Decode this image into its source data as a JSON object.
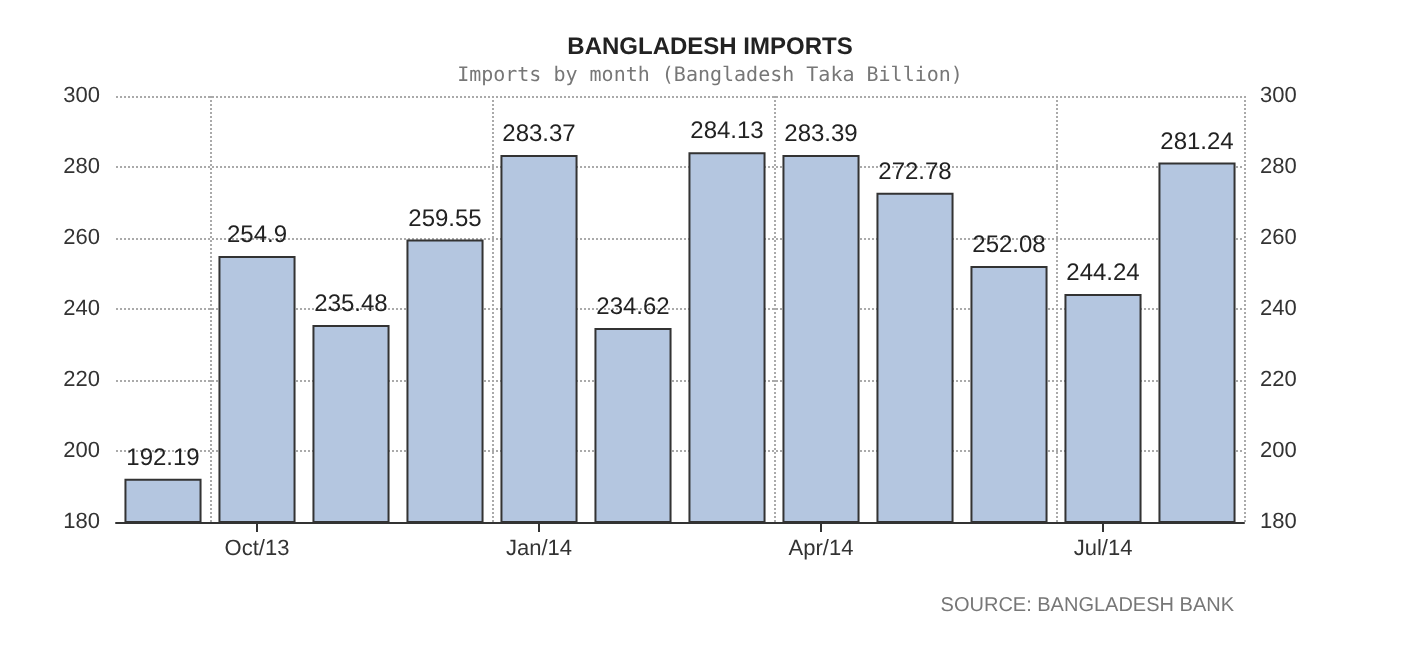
{
  "chart_data": {
    "type": "bar",
    "title": "BANGLADESH IMPORTS",
    "subtitle": "Imports by month (Bangladesh Taka Billion)",
    "categories": [
      null,
      "Oct/13",
      null,
      null,
      "Jan/14",
      null,
      null,
      "Apr/14",
      null,
      null,
      "Jul/14",
      null
    ],
    "values": [
      192.19,
      254.9,
      235.48,
      259.55,
      283.37,
      234.62,
      284.13,
      283.39,
      272.78,
      252.08,
      244.24,
      281.24
    ],
    "color": "#b4c6e0",
    "data_labels": true,
    "grid": true,
    "ylim": [
      180,
      300
    ],
    "yticks": [
      180,
      200,
      220,
      240,
      260,
      280,
      300
    ],
    "y2lim": [
      180,
      300
    ],
    "y2ticks": [
      180,
      200,
      220,
      240,
      260,
      280,
      300
    ],
    "annotations": [
      "SOURCE: BANGLADESH BANK"
    ]
  }
}
